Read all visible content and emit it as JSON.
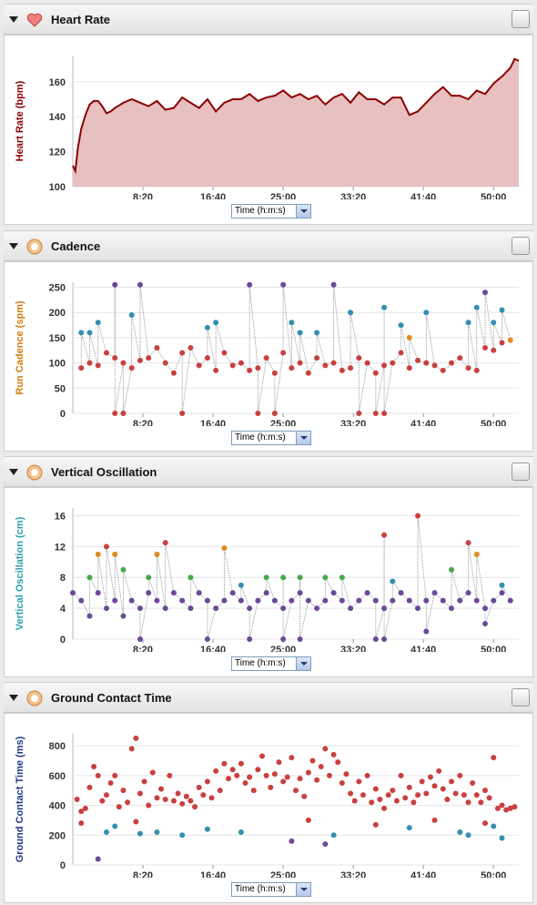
{
  "panels": [
    {
      "id": "hr",
      "title": "Heart Rate",
      "icon": "heart-icon"
    },
    {
      "id": "cad",
      "title": "Cadence",
      "icon": "runner-icon"
    },
    {
      "id": "vo",
      "title": "Vertical Oscillation",
      "icon": "runner-icon"
    },
    {
      "id": "gct",
      "title": "Ground Contact Time",
      "icon": "runner-icon"
    }
  ],
  "axis_select_label": "Time (h:m:s)",
  "colors": {
    "hr_line": "#8b0000",
    "hr_fill": "#e8c0c0",
    "cad_axis": "#d17e0f",
    "vo_axis": "#2a9fb0",
    "gct_axis": "#1f3a8c",
    "red": "#c94040",
    "purple": "#6b4a96",
    "blue": "#3390b0",
    "green": "#4aa84a",
    "orange": "#e08c20"
  },
  "chart_data": [
    {
      "type": "area",
      "title": "Heart Rate",
      "ylabel": "Heart Rate (bpm)",
      "xlabel": "Time (h:m:s)",
      "ylim": [
        100,
        175
      ],
      "xlim": [
        0,
        53
      ],
      "yticks": [
        "100",
        "120",
        "140",
        "160"
      ],
      "xticks": [
        "8:20",
        "16:40",
        "25:00",
        "33:20",
        "41:40",
        "50:00"
      ],
      "x": [
        0,
        0.3,
        0.6,
        1,
        1.5,
        2,
        2.5,
        3,
        3.5,
        4,
        4.5,
        5,
        6,
        7,
        8,
        9,
        10,
        11,
        12,
        13,
        14,
        15,
        16,
        17,
        18,
        19,
        20,
        21,
        22,
        23,
        24,
        25,
        26,
        27,
        28,
        29,
        30,
        31,
        32,
        33,
        34,
        35,
        36,
        37,
        38,
        39,
        40,
        41,
        42,
        43,
        44,
        45,
        46,
        47,
        48,
        49,
        50,
        51,
        52,
        52.5,
        53
      ],
      "y": [
        112,
        109,
        122,
        133,
        141,
        147,
        149,
        149,
        146,
        142,
        143,
        145,
        148,
        150,
        148,
        146,
        149,
        144,
        145,
        151,
        148,
        145,
        150,
        143,
        148,
        150,
        150,
        153,
        149,
        151,
        152,
        155,
        151,
        153,
        150,
        152,
        147,
        151,
        153,
        148,
        154,
        150,
        150,
        147,
        151,
        151,
        141,
        143,
        148,
        153,
        157,
        152,
        152,
        150,
        155,
        153,
        159,
        163,
        168,
        173,
        172
      ]
    },
    {
      "type": "scatter",
      "title": "Cadence",
      "ylabel": "Run Cadence (spm)",
      "xlabel": "Time (h:m:s)",
      "ylim": [
        0,
        260
      ],
      "xlim": [
        0,
        53
      ],
      "yticks": [
        "0",
        "50",
        "100",
        "150",
        "200",
        "250"
      ],
      "xticks": [
        "8:20",
        "16:40",
        "25:00",
        "33:20",
        "41:40",
        "50:00"
      ],
      "base": [
        [
          1,
          90
        ],
        [
          2,
          100
        ],
        [
          3,
          95
        ],
        [
          4,
          120
        ],
        [
          5,
          110
        ],
        [
          6,
          100
        ],
        [
          7,
          90
        ],
        [
          8,
          105
        ],
        [
          9,
          110
        ],
        [
          10,
          130
        ],
        [
          11,
          100
        ],
        [
          12,
          80
        ],
        [
          13,
          120
        ],
        [
          14,
          130
        ],
        [
          15,
          95
        ],
        [
          16,
          110
        ],
        [
          17,
          85
        ],
        [
          18,
          120
        ],
        [
          19,
          95
        ],
        [
          20,
          100
        ],
        [
          21,
          85
        ],
        [
          22,
          90
        ],
        [
          23,
          110
        ],
        [
          24,
          80
        ],
        [
          25,
          120
        ],
        [
          26,
          90
        ],
        [
          27,
          100
        ],
        [
          28,
          80
        ],
        [
          29,
          110
        ],
        [
          30,
          95
        ],
        [
          31,
          100
        ],
        [
          32,
          85
        ],
        [
          33,
          90
        ],
        [
          34,
          110
        ],
        [
          35,
          100
        ],
        [
          36,
          80
        ],
        [
          37,
          95
        ],
        [
          38,
          100
        ],
        [
          39,
          120
        ],
        [
          40,
          90
        ],
        [
          41,
          105
        ],
        [
          42,
          100
        ],
        [
          43,
          95
        ],
        [
          44,
          85
        ],
        [
          45,
          100
        ],
        [
          46,
          110
        ],
        [
          47,
          90
        ],
        [
          48,
          85
        ],
        [
          49,
          130
        ],
        [
          50,
          125
        ],
        [
          51,
          140
        ],
        [
          52,
          145
        ]
      ],
      "spikes": [
        [
          5,
          255
        ],
        [
          8,
          255
        ],
        [
          21,
          255
        ],
        [
          25,
          255
        ],
        [
          31,
          255
        ],
        [
          26,
          180
        ],
        [
          33,
          200
        ],
        [
          37,
          210
        ],
        [
          42,
          200
        ],
        [
          48,
          210
        ],
        [
          49,
          240
        ],
        [
          51,
          205
        ],
        [
          7,
          195
        ],
        [
          3,
          180
        ],
        [
          2,
          160
        ],
        [
          1,
          160
        ],
        [
          16,
          170
        ],
        [
          17,
          180
        ],
        [
          27,
          160
        ],
        [
          29,
          160
        ],
        [
          39,
          175
        ],
        [
          40,
          150
        ],
        [
          47,
          180
        ],
        [
          50,
          180
        ],
        [
          22,
          0
        ],
        [
          24,
          0
        ],
        [
          34,
          0
        ],
        [
          36,
          0
        ],
        [
          37,
          0
        ],
        [
          5,
          0
        ],
        [
          6,
          0
        ],
        [
          13,
          0
        ]
      ]
    },
    {
      "type": "scatter",
      "title": "Vertical Oscillation",
      "ylabel": "Vertical Oscillation (cm)",
      "xlabel": "Time (h:m:s)",
      "ylim": [
        0,
        17
      ],
      "xlim": [
        0,
        53
      ],
      "yticks": [
        "0",
        "4",
        "8",
        "12",
        "16"
      ],
      "xticks": [
        "8:20",
        "16:40",
        "25:00",
        "33:20",
        "41:40",
        "50:00"
      ],
      "base": [
        [
          0,
          6
        ],
        [
          1,
          5
        ],
        [
          2,
          3
        ],
        [
          3,
          6
        ],
        [
          4,
          4
        ],
        [
          5,
          5
        ],
        [
          6,
          3
        ],
        [
          7,
          5
        ],
        [
          8,
          4
        ],
        [
          9,
          6
        ],
        [
          10,
          5
        ],
        [
          11,
          4
        ],
        [
          12,
          6
        ],
        [
          13,
          5
        ],
        [
          14,
          4
        ],
        [
          15,
          6
        ],
        [
          16,
          5
        ],
        [
          17,
          4
        ],
        [
          18,
          5
        ],
        [
          19,
          6
        ],
        [
          20,
          5
        ],
        [
          21,
          4
        ],
        [
          22,
          5
        ],
        [
          23,
          6
        ],
        [
          24,
          5
        ],
        [
          25,
          4
        ],
        [
          26,
          5
        ],
        [
          27,
          6
        ],
        [
          28,
          5
        ],
        [
          29,
          4
        ],
        [
          30,
          5
        ],
        [
          31,
          6
        ],
        [
          32,
          5
        ],
        [
          33,
          4
        ],
        [
          34,
          5
        ],
        [
          35,
          6
        ],
        [
          36,
          5
        ],
        [
          37,
          4
        ],
        [
          38,
          5
        ],
        [
          39,
          6
        ],
        [
          40,
          5
        ],
        [
          41,
          4
        ],
        [
          42,
          5
        ],
        [
          43,
          6
        ],
        [
          44,
          5
        ],
        [
          45,
          4
        ],
        [
          46,
          5
        ],
        [
          47,
          6
        ],
        [
          48,
          5
        ],
        [
          49,
          4
        ],
        [
          50,
          5
        ],
        [
          51,
          6
        ],
        [
          52,
          5
        ]
      ],
      "spikes": [
        [
          4,
          12
        ],
        [
          5,
          11
        ],
        [
          11,
          12.5
        ],
        [
          18,
          11.8
        ],
        [
          37,
          13.5
        ],
        [
          41,
          16
        ],
        [
          47,
          12.5
        ],
        [
          48,
          11
        ],
        [
          3,
          11
        ],
        [
          10,
          11
        ],
        [
          2,
          8
        ],
        [
          6,
          9
        ],
        [
          9,
          8
        ],
        [
          14,
          8
        ],
        [
          20,
          7
        ],
        [
          23,
          8
        ],
        [
          25,
          8
        ],
        [
          27,
          8
        ],
        [
          30,
          8
        ],
        [
          32,
          8
        ],
        [
          38,
          7.5
        ],
        [
          45,
          9
        ],
        [
          51,
          7
        ],
        [
          8,
          0
        ],
        [
          16,
          0
        ],
        [
          21,
          0
        ],
        [
          25,
          0
        ],
        [
          27,
          0
        ],
        [
          36,
          0
        ],
        [
          37,
          0
        ],
        [
          42,
          1
        ],
        [
          49,
          2
        ]
      ]
    },
    {
      "type": "scatter",
      "title": "Ground Contact Time",
      "ylabel": "Ground Contact Time (ms)",
      "xlabel": "Time (h:m:s)",
      "ylim": [
        0,
        880
      ],
      "xlim": [
        0,
        53
      ],
      "yticks": [
        "0",
        "200",
        "400",
        "600",
        "800"
      ],
      "xticks": [
        "8:20",
        "16:40",
        "25:00",
        "33:20",
        "41:40",
        "50:00"
      ],
      "base": [
        [
          0.5,
          440
        ],
        [
          1,
          360
        ],
        [
          1.5,
          380
        ],
        [
          2,
          520
        ],
        [
          2.5,
          660
        ],
        [
          3,
          600
        ],
        [
          3.5,
          430
        ],
        [
          4,
          470
        ],
        [
          4.5,
          550
        ],
        [
          5,
          600
        ],
        [
          5.5,
          390
        ],
        [
          6,
          500
        ],
        [
          6.5,
          420
        ],
        [
          7,
          780
        ],
        [
          7.5,
          850
        ],
        [
          8,
          480
        ],
        [
          8.5,
          560
        ],
        [
          9,
          400
        ],
        [
          9.5,
          620
        ],
        [
          10,
          450
        ],
        [
          10.5,
          510
        ],
        [
          11,
          440
        ],
        [
          11.5,
          600
        ],
        [
          12,
          430
        ],
        [
          12.5,
          480
        ],
        [
          13,
          410
        ],
        [
          13.5,
          460
        ],
        [
          14,
          430
        ],
        [
          14.5,
          390
        ],
        [
          15,
          520
        ],
        [
          15.5,
          470
        ],
        [
          16,
          560
        ],
        [
          16.5,
          450
        ],
        [
          17,
          630
        ],
        [
          17.5,
          500
        ],
        [
          18,
          680
        ],
        [
          18.5,
          580
        ],
        [
          19,
          640
        ],
        [
          19.5,
          600
        ],
        [
          20,
          680
        ],
        [
          20.5,
          550
        ],
        [
          21,
          590
        ],
        [
          21.5,
          500
        ],
        [
          22,
          640
        ],
        [
          22.5,
          730
        ],
        [
          23,
          600
        ],
        [
          23.5,
          520
        ],
        [
          24,
          610
        ],
        [
          24.5,
          690
        ],
        [
          25,
          560
        ],
        [
          25.5,
          590
        ],
        [
          26,
          720
        ],
        [
          26.5,
          500
        ],
        [
          27,
          580
        ],
        [
          27.5,
          460
        ],
        [
          28,
          620
        ],
        [
          28.5,
          700
        ],
        [
          29,
          570
        ],
        [
          29.5,
          660
        ],
        [
          30,
          780
        ],
        [
          30.5,
          600
        ],
        [
          31,
          740
        ],
        [
          31.5,
          690
        ],
        [
          32,
          550
        ],
        [
          32.5,
          610
        ],
        [
          33,
          480
        ],
        [
          33.5,
          430
        ],
        [
          34,
          560
        ],
        [
          34.5,
          470
        ],
        [
          35,
          600
        ],
        [
          35.5,
          420
        ],
        [
          36,
          510
        ],
        [
          36.5,
          440
        ],
        [
          37,
          380
        ],
        [
          37.5,
          470
        ],
        [
          38,
          500
        ],
        [
          38.5,
          430
        ],
        [
          39,
          600
        ],
        [
          39.5,
          450
        ],
        [
          40,
          520
        ],
        [
          40.5,
          420
        ],
        [
          41,
          470
        ],
        [
          41.5,
          560
        ],
        [
          42,
          480
        ],
        [
          42.5,
          590
        ],
        [
          43,
          530
        ],
        [
          43.5,
          630
        ],
        [
          44,
          510
        ],
        [
          44.5,
          440
        ],
        [
          45,
          560
        ],
        [
          45.5,
          480
        ],
        [
          46,
          600
        ],
        [
          46.5,
          470
        ],
        [
          47,
          420
        ],
        [
          47.5,
          550
        ],
        [
          48,
          470
        ],
        [
          48.5,
          420
        ],
        [
          49,
          500
        ],
        [
          49.5,
          450
        ],
        [
          50,
          720
        ],
        [
          50.5,
          380
        ],
        [
          51,
          400
        ],
        [
          51.5,
          370
        ],
        [
          52,
          380
        ],
        [
          52.5,
          390
        ]
      ],
      "spikes": [
        [
          1,
          280
        ],
        [
          4,
          220
        ],
        [
          5,
          260
        ],
        [
          7.5,
          290
        ],
        [
          8,
          210
        ],
        [
          10,
          220
        ],
        [
          13,
          200
        ],
        [
          16,
          240
        ],
        [
          20,
          220
        ],
        [
          26,
          160
        ],
        [
          28,
          300
        ],
        [
          30,
          140
        ],
        [
          31,
          200
        ],
        [
          36,
          270
        ],
        [
          40,
          250
        ],
        [
          43,
          300
        ],
        [
          46,
          220
        ],
        [
          47,
          200
        ],
        [
          49,
          280
        ],
        [
          50,
          260
        ],
        [
          51,
          180
        ],
        [
          3,
          40
        ]
      ]
    }
  ]
}
